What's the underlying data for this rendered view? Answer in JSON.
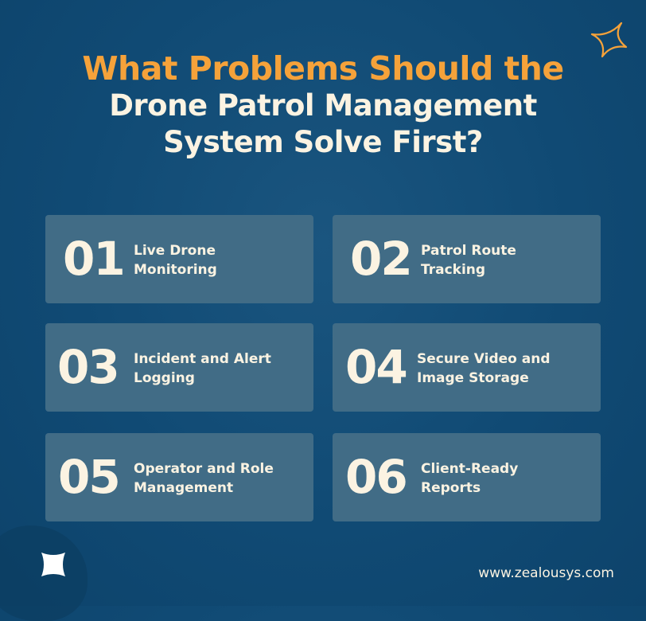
{
  "title": {
    "line1": "What Problems Should the",
    "line2": "Drone Patrol Management",
    "line3": "System Solve First?"
  },
  "items": [
    {
      "number": "01",
      "label_line1": "Live Drone",
      "label_line2": "Monitoring"
    },
    {
      "number": "02",
      "label_line1": "Patrol Route",
      "label_line2": "Tracking"
    },
    {
      "number": "03",
      "label_line1": "Incident and Alert",
      "label_line2": "Logging"
    },
    {
      "number": "04",
      "label_line1": "Secure Video and",
      "label_line2": "Image Storage"
    },
    {
      "number": "05",
      "label_line1": "Operator and Role",
      "label_line2": "Management"
    },
    {
      "number": "06",
      "label_line1": "Client-Ready",
      "label_line2": "Reports"
    }
  ],
  "footer": {
    "url": "www.zealousys.com"
  },
  "colors": {
    "background": "#104a74",
    "card": "#416c86",
    "accent": "#f5a23a",
    "text": "#fbf3e2"
  },
  "icons": [
    "sparkle-outline-icon",
    "sparkle-filled-icon"
  ]
}
